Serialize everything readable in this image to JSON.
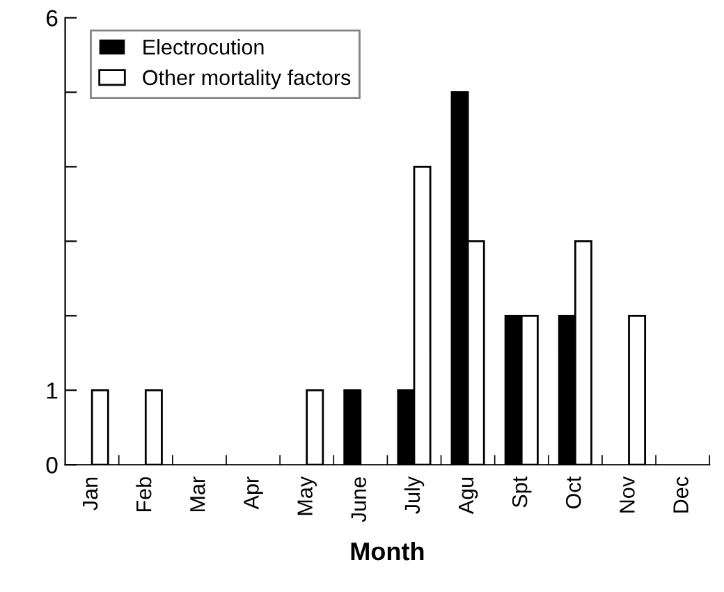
{
  "chart_data": {
    "type": "bar",
    "xlabel": "Month",
    "categories": [
      "Jan",
      "Feb",
      "Mar",
      "Apr",
      "May",
      "June",
      "July",
      "Agu",
      "Spt",
      "Oct",
      "Nov",
      "Dec"
    ],
    "series": [
      {
        "name": "Electrocution",
        "color": "#000000",
        "values": [
          0,
          0,
          0,
          0,
          0,
          1,
          1,
          5,
          2,
          2,
          0,
          0
        ]
      },
      {
        "name": "Other mortality factors",
        "color": "#ffffff",
        "values": [
          1,
          1,
          0,
          0,
          1,
          0,
          4,
          3,
          2,
          3,
          2,
          0
        ]
      }
    ],
    "ylim": [
      0,
      6
    ],
    "yticks": [
      0,
      1,
      {
        "value": 2,
        "label": null
      },
      {
        "value": 3,
        "label": null
      },
      {
        "value": 4,
        "label": null
      },
      {
        "value": 5,
        "label": null
      },
      6
    ],
    "grid": false,
    "legend": "top left"
  }
}
